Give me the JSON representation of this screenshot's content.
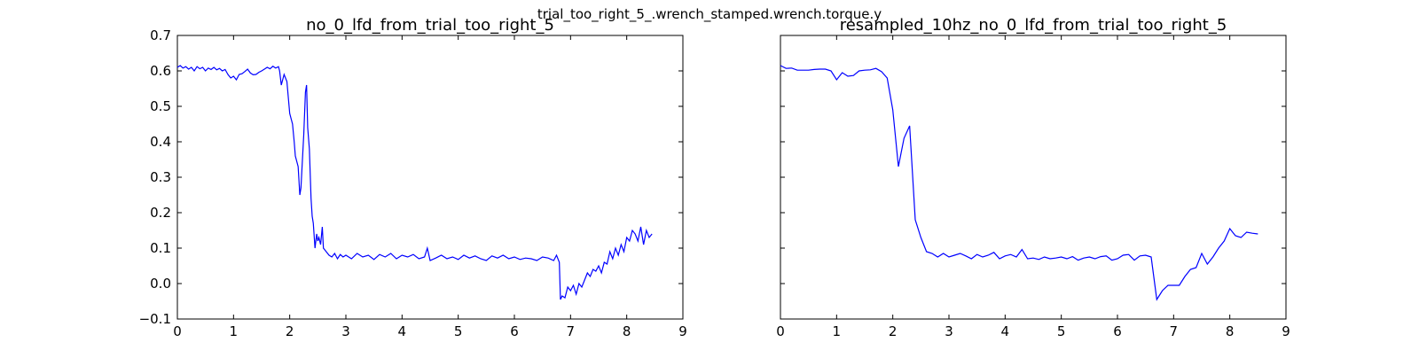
{
  "suptitle": "trial_too_right_5_.wrench_stamped.wrench.torque.y",
  "chart_data": [
    {
      "type": "line",
      "title": "no_0_lfd_from_trial_too_right_5",
      "xlabel": "",
      "ylabel": "",
      "xlim": [
        0,
        9
      ],
      "ylim": [
        -0.1,
        0.7
      ],
      "xticks": [
        "0",
        "1",
        "2",
        "3",
        "4",
        "5",
        "6",
        "7",
        "8",
        "9"
      ],
      "yticks": [
        "−0.1",
        "0.0",
        "0.1",
        "0.2",
        "0.3",
        "0.4",
        "0.5",
        "0.6",
        "0.7"
      ],
      "grid": false,
      "series": [
        {
          "color": "#0000ff",
          "x": [
            0.0,
            0.05,
            0.1,
            0.15,
            0.2,
            0.25,
            0.3,
            0.35,
            0.4,
            0.45,
            0.5,
            0.55,
            0.6,
            0.65,
            0.7,
            0.75,
            0.8,
            0.85,
            0.9,
            0.95,
            1.0,
            1.05,
            1.1,
            1.15,
            1.2,
            1.25,
            1.3,
            1.35,
            1.4,
            1.45,
            1.5,
            1.55,
            1.6,
            1.65,
            1.7,
            1.75,
            1.8,
            1.82,
            1.85,
            1.9,
            1.95,
            2.0,
            2.05,
            2.08,
            2.1,
            2.15,
            2.18,
            2.2,
            2.25,
            2.28,
            2.3,
            2.32,
            2.35,
            2.38,
            2.4,
            2.42,
            2.45,
            2.48,
            2.5,
            2.52,
            2.55,
            2.58,
            2.6,
            2.65,
            2.7,
            2.75,
            2.8,
            2.85,
            2.9,
            2.95,
            3.0,
            3.1,
            3.2,
            3.3,
            3.4,
            3.5,
            3.6,
            3.7,
            3.8,
            3.9,
            4.0,
            4.1,
            4.2,
            4.3,
            4.4,
            4.45,
            4.5,
            4.6,
            4.7,
            4.8,
            4.9,
            5.0,
            5.1,
            5.2,
            5.3,
            5.4,
            5.5,
            5.6,
            5.7,
            5.8,
            5.9,
            6.0,
            6.1,
            6.2,
            6.3,
            6.4,
            6.5,
            6.6,
            6.7,
            6.75,
            6.8,
            6.82,
            6.85,
            6.9,
            6.95,
            7.0,
            7.05,
            7.1,
            7.15,
            7.2,
            7.25,
            7.3,
            7.35,
            7.4,
            7.45,
            7.5,
            7.55,
            7.6,
            7.65,
            7.7,
            7.75,
            7.8,
            7.85,
            7.9,
            7.95,
            8.0,
            8.05,
            8.1,
            8.15,
            8.2,
            8.25,
            8.3,
            8.35,
            8.4,
            8.45
          ],
          "y": [
            0.61,
            0.615,
            0.608,
            0.612,
            0.605,
            0.61,
            0.6,
            0.612,
            0.606,
            0.61,
            0.6,
            0.608,
            0.604,
            0.61,
            0.603,
            0.607,
            0.6,
            0.604,
            0.59,
            0.58,
            0.585,
            0.575,
            0.59,
            0.592,
            0.598,
            0.605,
            0.594,
            0.589,
            0.59,
            0.596,
            0.6,
            0.605,
            0.61,
            0.606,
            0.613,
            0.608,
            0.612,
            0.6,
            0.56,
            0.59,
            0.57,
            0.48,
            0.45,
            0.4,
            0.36,
            0.33,
            0.25,
            0.27,
            0.42,
            0.54,
            0.56,
            0.44,
            0.38,
            0.24,
            0.19,
            0.17,
            0.1,
            0.14,
            0.12,
            0.13,
            0.11,
            0.16,
            0.1,
            0.09,
            0.08,
            0.075,
            0.085,
            0.07,
            0.082,
            0.075,
            0.08,
            0.07,
            0.085,
            0.075,
            0.08,
            0.068,
            0.082,
            0.075,
            0.085,
            0.07,
            0.08,
            0.075,
            0.082,
            0.07,
            0.075,
            0.1,
            0.065,
            0.072,
            0.08,
            0.07,
            0.075,
            0.068,
            0.08,
            0.072,
            0.078,
            0.07,
            0.065,
            0.078,
            0.072,
            0.08,
            0.07,
            0.075,
            0.068,
            0.072,
            0.07,
            0.065,
            0.075,
            0.072,
            0.065,
            0.08,
            0.06,
            -0.045,
            -0.035,
            -0.04,
            -0.01,
            -0.02,
            -0.005,
            -0.03,
            0.0,
            -0.01,
            0.01,
            0.03,
            0.02,
            0.04,
            0.035,
            0.05,
            0.03,
            0.06,
            0.055,
            0.09,
            0.07,
            0.1,
            0.08,
            0.11,
            0.09,
            0.13,
            0.12,
            0.15,
            0.14,
            0.12,
            0.16,
            0.11,
            0.15,
            0.13,
            0.14
          ]
        }
      ]
    },
    {
      "type": "line",
      "title": "resampled_10hz_no_0_lfd_from_trial_too_right_5",
      "xlabel": "",
      "ylabel": "",
      "xlim": [
        0,
        9
      ],
      "ylim": [
        -0.1,
        0.7
      ],
      "xticks": [
        "0",
        "1",
        "2",
        "3",
        "4",
        "5",
        "6",
        "7",
        "8",
        "9"
      ],
      "yticks": [],
      "grid": false,
      "series": [
        {
          "color": "#0000ff",
          "x": [
            0.0,
            0.1,
            0.2,
            0.3,
            0.4,
            0.5,
            0.6,
            0.7,
            0.8,
            0.9,
            1.0,
            1.1,
            1.2,
            1.3,
            1.4,
            1.5,
            1.6,
            1.7,
            1.8,
            1.9,
            2.0,
            2.1,
            2.2,
            2.3,
            2.4,
            2.5,
            2.6,
            2.7,
            2.8,
            2.9,
            3.0,
            3.1,
            3.2,
            3.3,
            3.4,
            3.5,
            3.6,
            3.7,
            3.8,
            3.9,
            4.0,
            4.1,
            4.2,
            4.3,
            4.4,
            4.5,
            4.6,
            4.7,
            4.8,
            4.9,
            5.0,
            5.1,
            5.2,
            5.3,
            5.4,
            5.5,
            5.6,
            5.7,
            5.8,
            5.9,
            6.0,
            6.1,
            6.2,
            6.3,
            6.4,
            6.5,
            6.6,
            6.7,
            6.8,
            6.9,
            7.0,
            7.1,
            7.2,
            7.3,
            7.4,
            7.5,
            7.6,
            7.7,
            7.8,
            7.9,
            8.0,
            8.1,
            8.2,
            8.3,
            8.4,
            8.5
          ],
          "y": [
            0.615,
            0.607,
            0.608,
            0.602,
            0.602,
            0.602,
            0.604,
            0.605,
            0.605,
            0.6,
            0.575,
            0.595,
            0.585,
            0.587,
            0.6,
            0.602,
            0.603,
            0.607,
            0.598,
            0.58,
            0.49,
            0.33,
            0.41,
            0.445,
            0.18,
            0.13,
            0.09,
            0.085,
            0.075,
            0.085,
            0.075,
            0.08,
            0.085,
            0.078,
            0.07,
            0.082,
            0.075,
            0.08,
            0.088,
            0.07,
            0.078,
            0.082,
            0.075,
            0.096,
            0.07,
            0.072,
            0.068,
            0.075,
            0.07,
            0.072,
            0.075,
            0.07,
            0.076,
            0.066,
            0.072,
            0.075,
            0.07,
            0.076,
            0.078,
            0.066,
            0.07,
            0.08,
            0.082,
            0.066,
            0.078,
            0.08,
            0.075,
            -0.045,
            -0.02,
            -0.005,
            -0.005,
            -0.005,
            0.02,
            0.04,
            0.045,
            0.085,
            0.055,
            0.075,
            0.1,
            0.12,
            0.155,
            0.135,
            0.13,
            0.145,
            0.142,
            0.14
          ]
        }
      ]
    }
  ]
}
